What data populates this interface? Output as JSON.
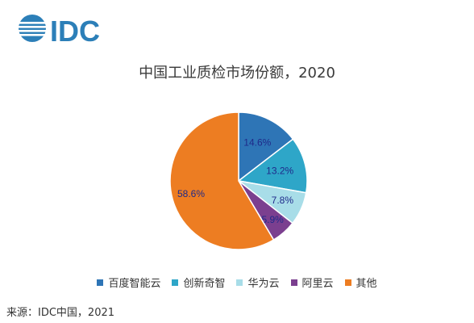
{
  "brand": {
    "logo_text": "IDC",
    "color": "#2c7fb8"
  },
  "chart_data": {
    "type": "pie",
    "title": "中国工业质检市场份额，2020",
    "slices": [
      {
        "label": "百度智能云",
        "value": 14.6,
        "display": "14.6%",
        "color": "#2e75b6"
      },
      {
        "label": "创新奇智",
        "value": 13.2,
        "display": "13.2%",
        "color": "#2ea6c8"
      },
      {
        "label": "华为云",
        "value": 7.8,
        "display": "7.8%",
        "color": "#a8dde8"
      },
      {
        "label": "阿里云",
        "value": 5.9,
        "display": "5.9%",
        "color": "#7b3f8f"
      },
      {
        "label": "其他",
        "value": 58.6,
        "display": "58.6%",
        "color": "#ed7d22"
      }
    ],
    "legend_position": "bottom",
    "label_color": "#1f2a8a"
  },
  "source": "来源：IDC中国，2021"
}
